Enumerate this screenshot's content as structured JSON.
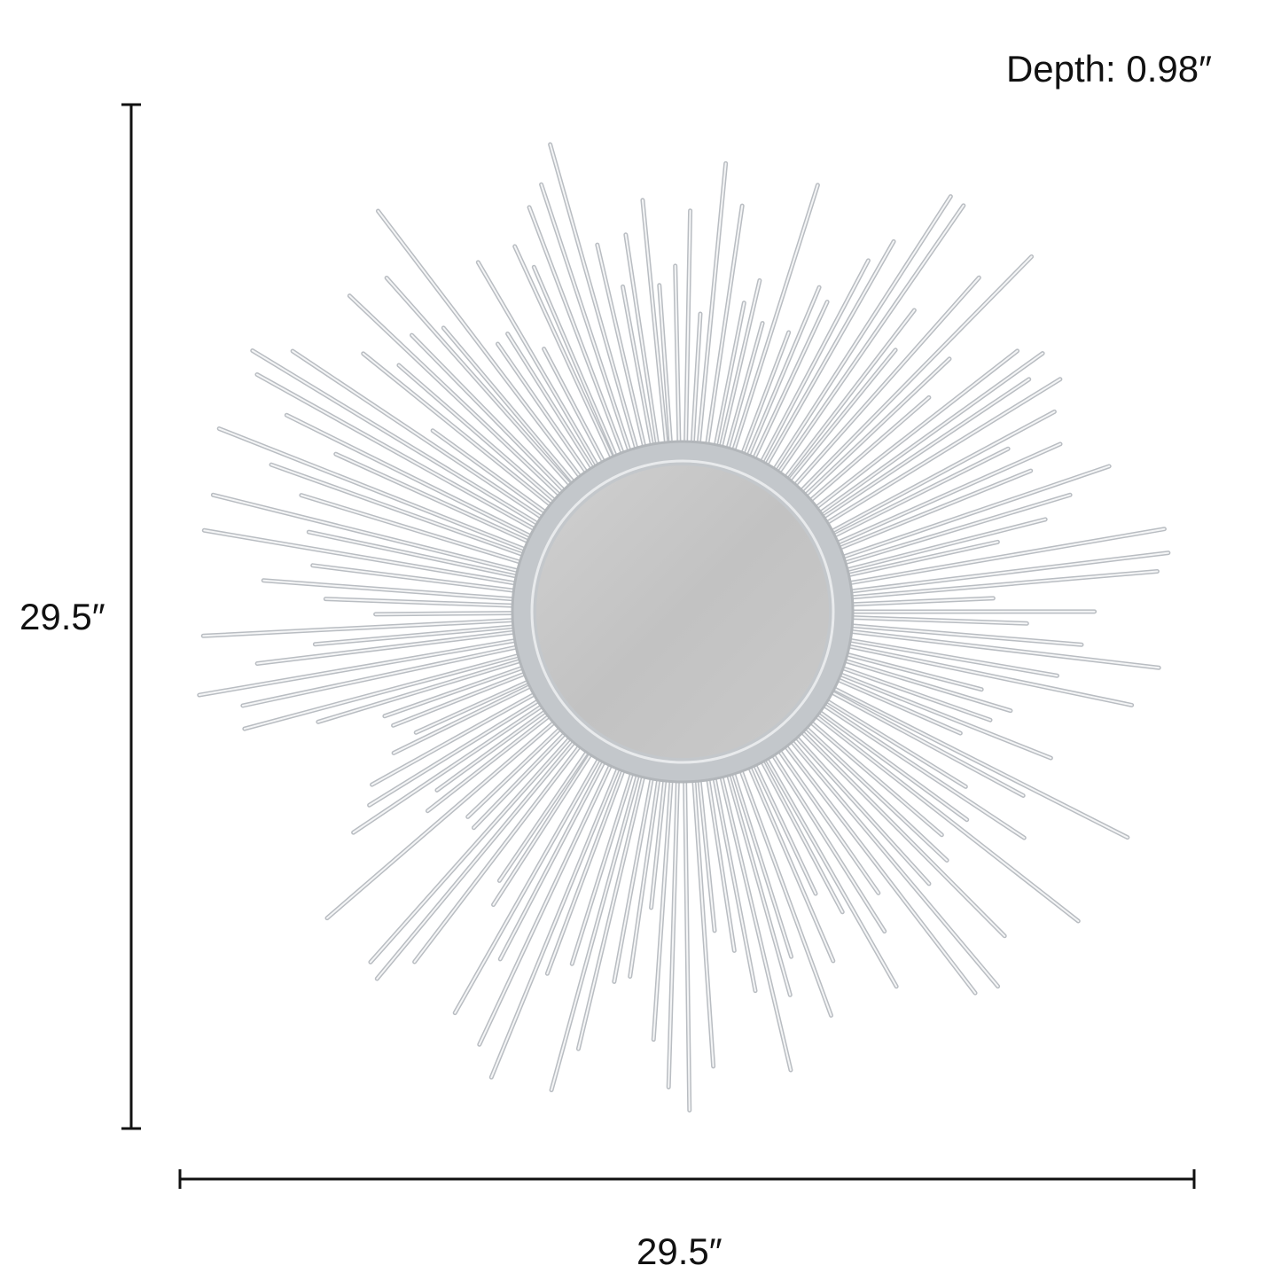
{
  "depth_label": "Depth: 0.98″",
  "height_label": "29.5″",
  "width_label": "29.5″",
  "colors": {
    "rays": "#c9ccd0",
    "frame": "#bfc3c7",
    "glass": "#c4c4c4",
    "dimension_lines": "#111111"
  }
}
